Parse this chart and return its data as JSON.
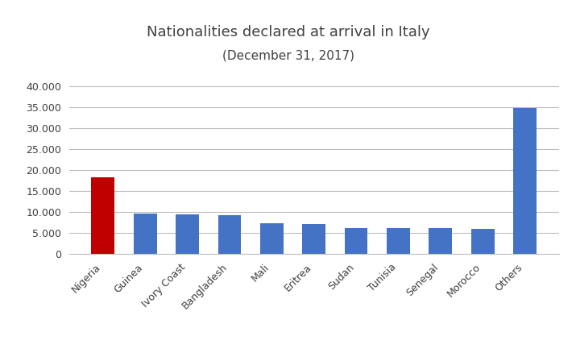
{
  "title_line1": "Nationalities declared at arrival in Italy",
  "title_line2": "(December 31, 2017)",
  "categories": [
    "Nigeria",
    "Guinea",
    "Ivory Coast",
    "Bangladesh",
    "Mali",
    "Eritrea",
    "Sudan",
    "Tunisia",
    "Senegal",
    "Morocco",
    "Others"
  ],
  "values": [
    18200,
    9700,
    9500,
    9200,
    7300,
    7100,
    6200,
    6200,
    6200,
    6000,
    34700
  ],
  "bar_colors": [
    "#c00000",
    "#4472c4",
    "#4472c4",
    "#4472c4",
    "#4472c4",
    "#4472c4",
    "#4472c4",
    "#4472c4",
    "#4472c4",
    "#4472c4",
    "#4472c4"
  ],
  "ylim": [
    0,
    42000
  ],
  "yticks": [
    0,
    5000,
    10000,
    15000,
    20000,
    25000,
    30000,
    35000,
    40000
  ],
  "ytick_labels": [
    "0",
    "5.000",
    "10.000",
    "15.000",
    "20.000",
    "25.000",
    "30.000",
    "35.000",
    "40.000"
  ],
  "background_color": "#ffffff",
  "grid_color": "#bfbfbf",
  "title_fontsize": 13,
  "subtitle_fontsize": 11,
  "tick_fontsize": 9,
  "bar_width": 0.55
}
